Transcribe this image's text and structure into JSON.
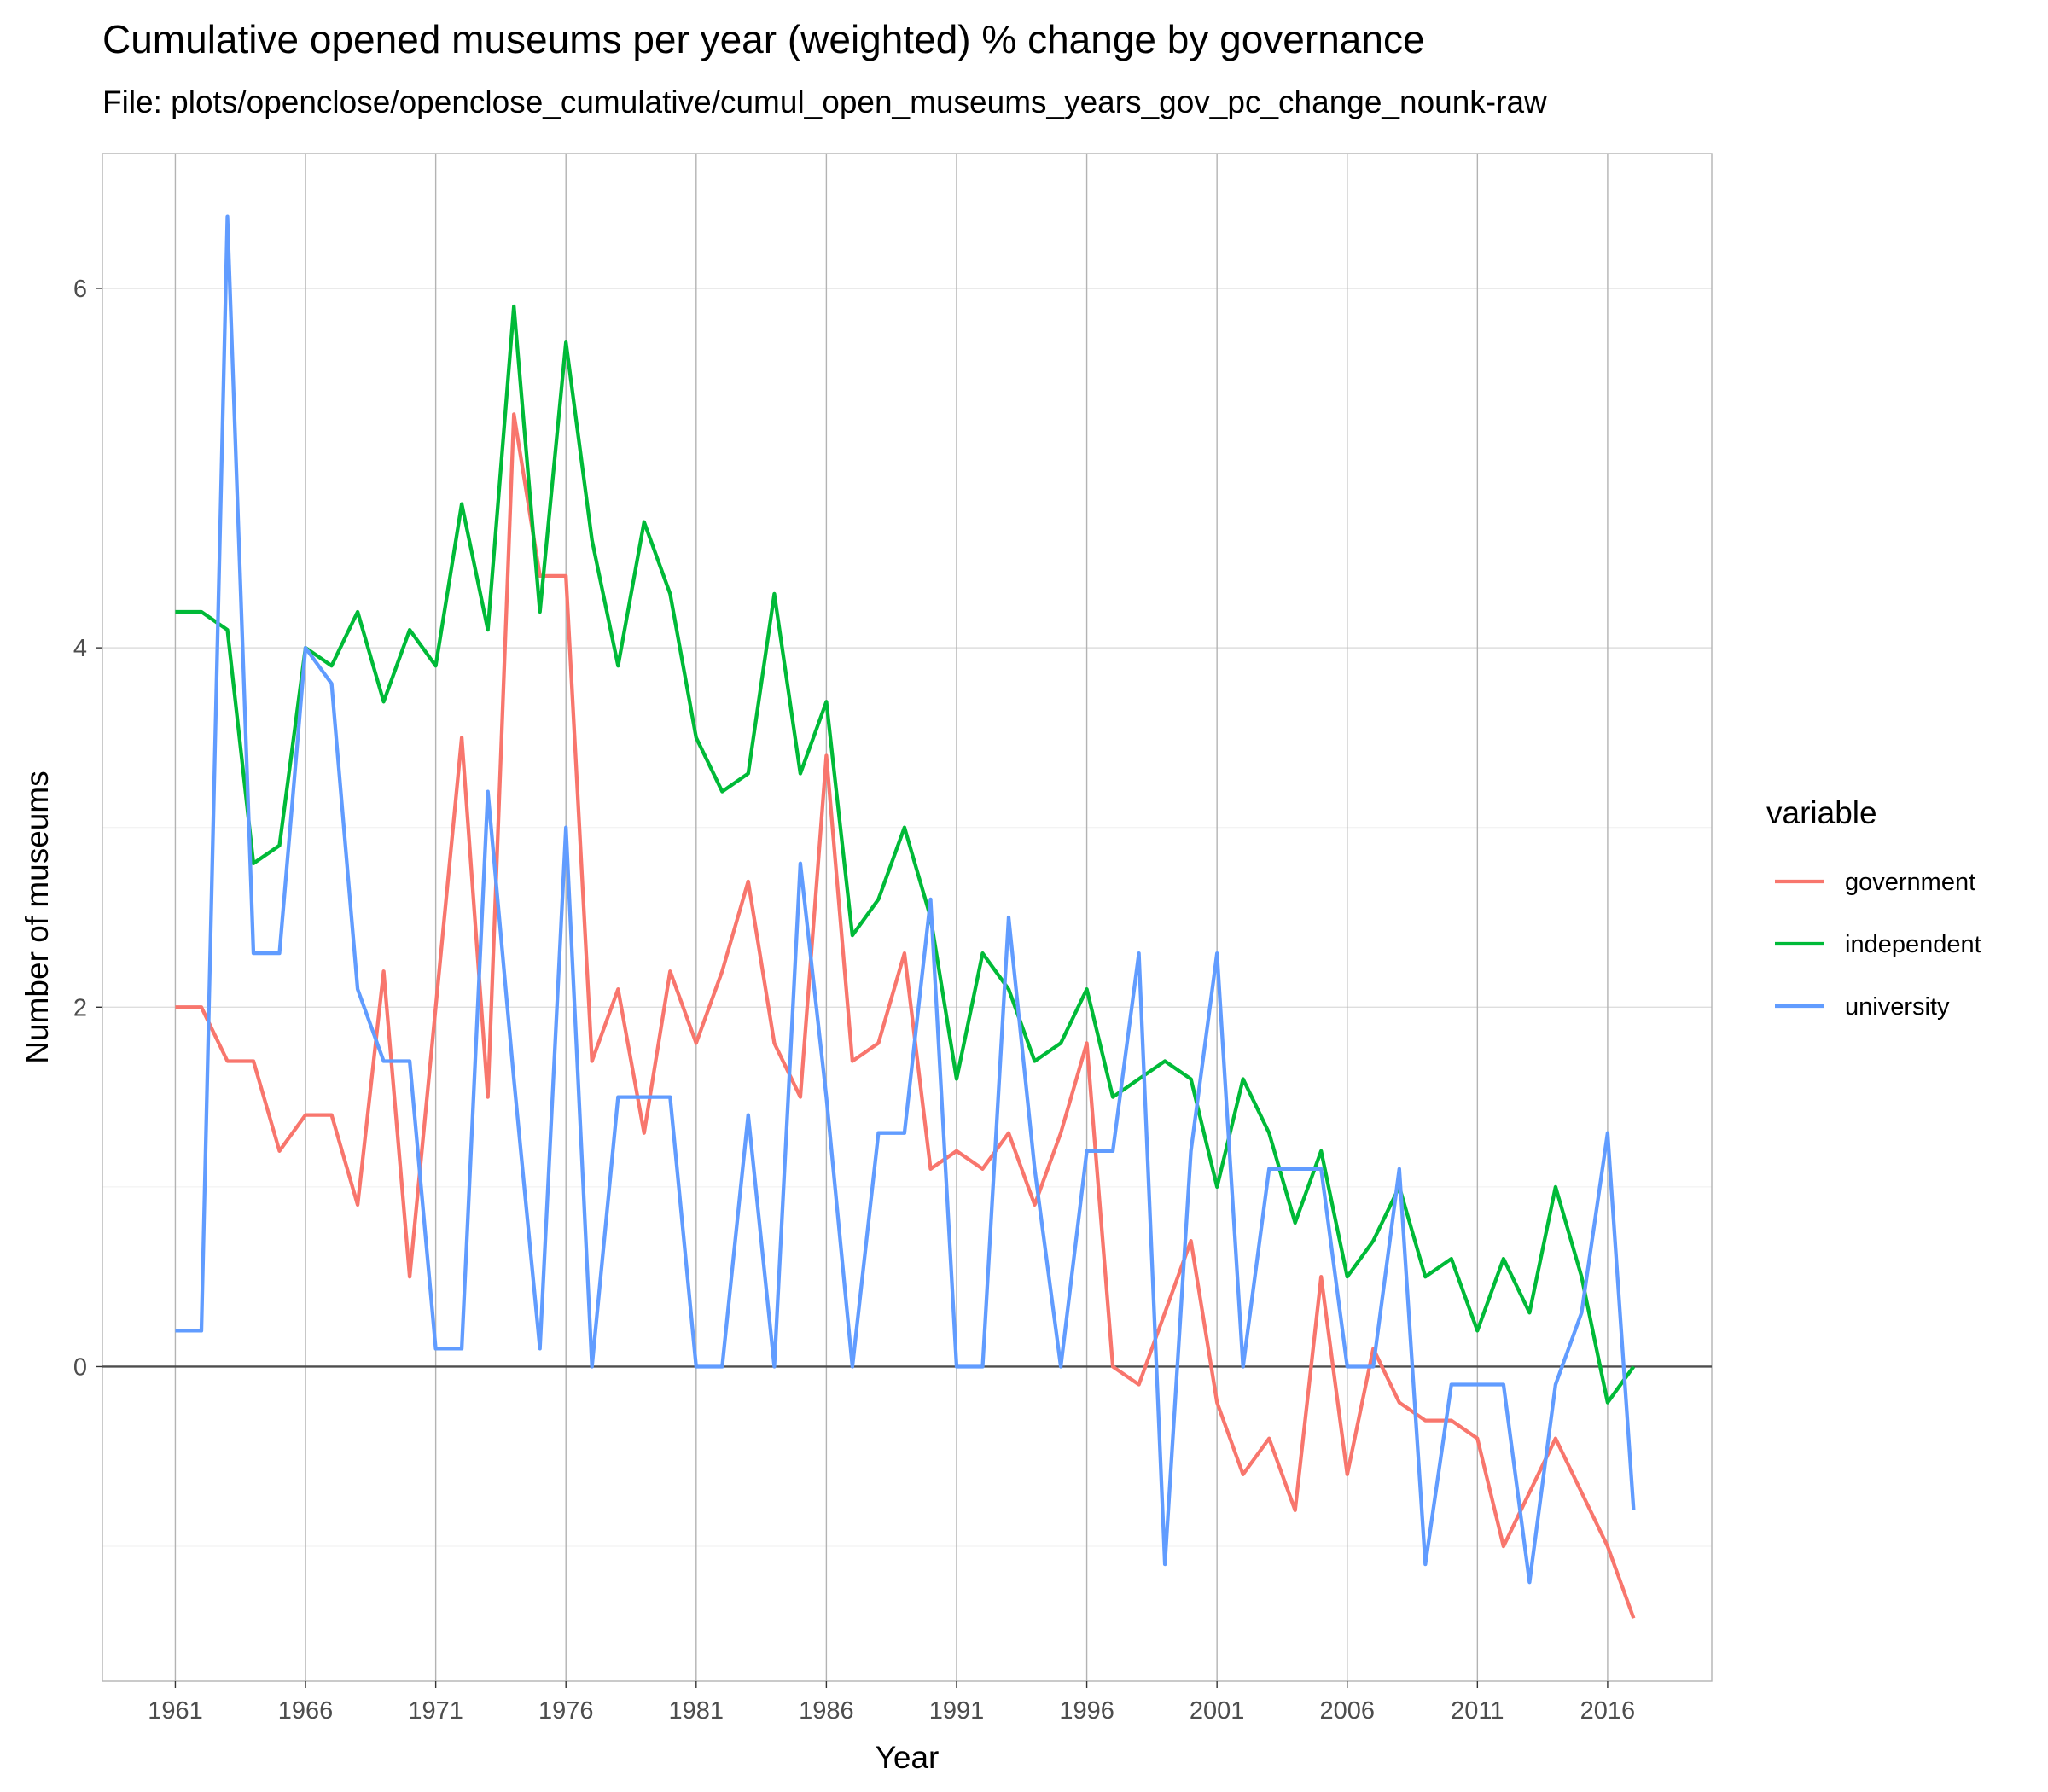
{
  "chart_data": {
    "type": "line",
    "title": "Cumulative opened museums per year (weighted) % change by governance",
    "subtitle": "File: plots/openclose/openclose_cumulative/cumul_open_museums_years_gov_pc_change_nounk-raw",
    "xlabel": "Year",
    "ylabel": "Number of museums",
    "xlim": [
      1958.2,
      2020.0
    ],
    "ylim": [
      -1.75,
      6.75
    ],
    "x_ticks": [
      1961,
      1966,
      1971,
      1976,
      1981,
      1986,
      1991,
      1996,
      2001,
      2006,
      2011,
      2016
    ],
    "y_ticks": [
      0,
      2,
      4,
      6
    ],
    "grid": true,
    "hline": 0,
    "legend": {
      "title": "variable",
      "position": "right"
    },
    "x": [
      1961,
      1962,
      1963,
      1964,
      1965,
      1966,
      1967,
      1968,
      1969,
      1970,
      1971,
      1972,
      1973,
      1974,
      1975,
      1976,
      1977,
      1978,
      1979,
      1980,
      1981,
      1982,
      1983,
      1984,
      1985,
      1986,
      1987,
      1988,
      1989,
      1990,
      1991,
      1992,
      1993,
      1994,
      1995,
      1996,
      1997,
      1998,
      1999,
      2000,
      2001,
      2002,
      2003,
      2004,
      2005,
      2006,
      2007,
      2008,
      2009,
      2010,
      2011,
      2012,
      2013,
      2014,
      2015,
      2016,
      2017
    ],
    "series": [
      {
        "name": "government",
        "color": "#F8766D",
        "values": [
          2.0,
          2.0,
          1.7,
          1.7,
          1.2,
          1.4,
          1.4,
          0.9,
          2.2,
          0.5,
          2.0,
          3.5,
          1.5,
          5.3,
          4.4,
          4.4,
          1.7,
          2.1,
          1.3,
          2.2,
          1.8,
          2.2,
          2.7,
          1.8,
          1.5,
          3.4,
          1.7,
          1.8,
          2.3,
          1.1,
          1.2,
          1.1,
          1.3,
          0.9,
          1.3,
          1.8,
          0.0,
          -0.1,
          0.3,
          0.7,
          -0.2,
          -0.6,
          -0.4,
          -0.8,
          0.5,
          -0.6,
          0.1,
          -0.2,
          -0.3,
          -0.3,
          -0.4,
          -1.0,
          -0.7,
          -0.4,
          -0.7,
          -1.0,
          -1.4
        ]
      },
      {
        "name": "independent",
        "color": "#00BA38",
        "values": [
          4.2,
          4.2,
          4.1,
          2.8,
          2.9,
          4.0,
          3.9,
          4.2,
          3.7,
          4.1,
          3.9,
          4.8,
          4.1,
          5.9,
          4.2,
          5.7,
          4.6,
          3.9,
          4.7,
          4.3,
          3.5,
          3.2,
          3.3,
          4.3,
          3.3,
          3.7,
          2.4,
          2.6,
          3.0,
          2.5,
          1.6,
          2.3,
          2.1,
          1.7,
          1.8,
          2.1,
          1.5,
          1.6,
          1.7,
          1.6,
          1.0,
          1.6,
          1.3,
          0.8,
          1.2,
          0.5,
          0.7,
          1.0,
          0.5,
          0.6,
          0.2,
          0.6,
          0.3,
          1.0,
          0.5,
          -0.2,
          0.0
        ]
      },
      {
        "name": "university",
        "color": "#619CFF",
        "values": [
          0.2,
          0.2,
          6.4,
          2.3,
          2.3,
          4.0,
          3.8,
          2.1,
          1.7,
          1.7,
          0.1,
          0.1,
          3.2,
          1.6,
          0.1,
          3.0,
          0.0,
          1.5,
          1.5,
          1.5,
          0.0,
          0.0,
          1.4,
          0.0,
          2.8,
          1.5,
          0.0,
          1.3,
          1.3,
          2.6,
          0.0,
          0.0,
          2.5,
          1.1,
          0.0,
          1.2,
          1.2,
          2.3,
          -1.1,
          1.2,
          2.3,
          0.0,
          1.1,
          1.1,
          1.1,
          0.0,
          0.0,
          1.1,
          -1.1,
          -0.1,
          -0.1,
          -0.1,
          -1.2,
          -0.1,
          0.3,
          1.3,
          -0.8
        ]
      }
    ]
  }
}
